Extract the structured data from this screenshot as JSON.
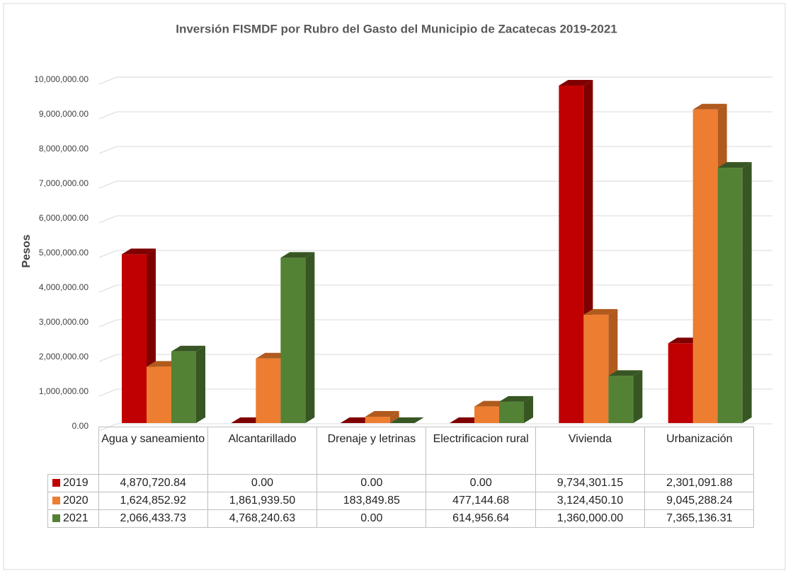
{
  "chart_data": {
    "type": "bar3d",
    "title": "Inversión FISMDF por Rubro del Gasto del Municipio de Zacatecas 2019-2021",
    "y_label": "Pesos",
    "categories": [
      "Agua y saneamiento",
      "Alcantarillado",
      "Drenaje y letrinas",
      "Electrificacion rural",
      "Vivienda",
      "Urbanización"
    ],
    "series": [
      {
        "name": "2019",
        "color": "#c00000",
        "side_color": "#7f0000",
        "values": [
          4870720.84,
          0,
          0,
          0,
          9734301.15,
          2301091.88
        ],
        "value_labels": [
          "4,870,720.84",
          "0.00",
          "0.00",
          "0.00",
          "9,734,301.15",
          "2,301,091.88"
        ]
      },
      {
        "name": "2020",
        "color": "#ed7d31",
        "side_color": "#b05a1e",
        "values": [
          1624852.92,
          1861939.5,
          183849.85,
          477144.68,
          3124450.1,
          9045288.24
        ],
        "value_labels": [
          "1,624,852.92",
          "1,861,939.50",
          "183,849.85",
          "477,144.68",
          "3,124,450.10",
          "9,045,288.24"
        ]
      },
      {
        "name": "2021",
        "color": "#548235",
        "side_color": "#375623",
        "values": [
          2066433.73,
          4768240.63,
          0,
          614956.64,
          1360000,
          7365136.31
        ],
        "value_labels": [
          "2,066,433.73",
          "4,768,240.63",
          "0.00",
          "614,956.64",
          "1,360,000.00",
          "7,365,136.31"
        ]
      }
    ],
    "ylim": [
      0,
      10000000
    ],
    "yticks": [
      {
        "value": 0,
        "label": "0.00"
      },
      {
        "value": 1000000,
        "label": "1,000,000.00"
      },
      {
        "value": 2000000,
        "label": "2,000,000.00"
      },
      {
        "value": 3000000,
        "label": "3,000,000.00"
      },
      {
        "value": 4000000,
        "label": "4,000,000.00"
      },
      {
        "value": 5000000,
        "label": "5,000,000.00"
      },
      {
        "value": 6000000,
        "label": "6,000,000.00"
      },
      {
        "value": 7000000,
        "label": "7,000,000.00"
      },
      {
        "value": 8000000,
        "label": "8,000,000.00"
      },
      {
        "value": 9000000,
        "label": "9,000,000.00"
      },
      {
        "value": 10000000,
        "label": "10,000,000.00"
      }
    ],
    "grid": true
  }
}
